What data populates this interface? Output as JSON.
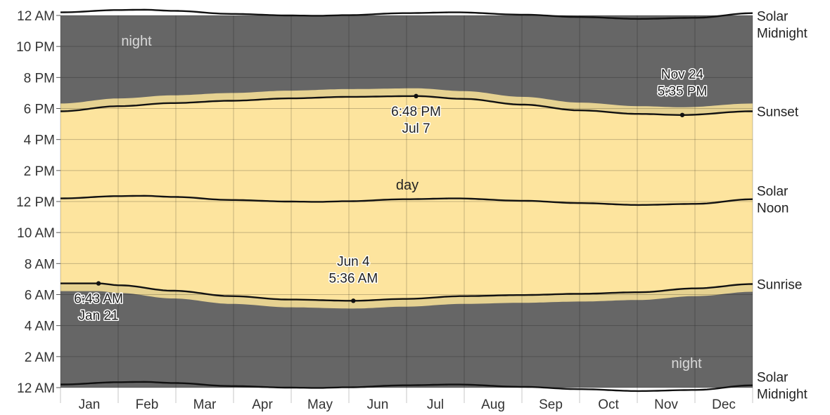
{
  "chart_data": {
    "type": "area",
    "y_axis": {
      "range_hours": [
        0,
        24
      ],
      "ticks": [
        {
          "hour": 0,
          "label": "12 AM"
        },
        {
          "hour": 2,
          "label": "2 AM"
        },
        {
          "hour": 4,
          "label": "4 AM"
        },
        {
          "hour": 6,
          "label": "6 AM"
        },
        {
          "hour": 8,
          "label": "8 AM"
        },
        {
          "hour": 10,
          "label": "10 AM"
        },
        {
          "hour": 12,
          "label": "12 PM"
        },
        {
          "hour": 14,
          "label": "2 PM"
        },
        {
          "hour": 16,
          "label": "4 PM"
        },
        {
          "hour": 18,
          "label": "6 PM"
        },
        {
          "hour": 20,
          "label": "8 PM"
        },
        {
          "hour": 22,
          "label": "10 PM"
        },
        {
          "hour": 24,
          "label": "12 AM"
        }
      ]
    },
    "x_axis": {
      "range_day_of_year": [
        1,
        365
      ],
      "months": [
        "Jan",
        "Feb",
        "Mar",
        "Apr",
        "May",
        "Jun",
        "Jul",
        "Aug",
        "Sep",
        "Oct",
        "Nov",
        "Dec"
      ]
    },
    "grid": true,
    "series": [
      {
        "name": "Sunrise",
        "values": [
          [
            1,
            6.72
          ],
          [
            21,
            6.72
          ],
          [
            32,
            6.6
          ],
          [
            60,
            6.25
          ],
          [
            91,
            5.9
          ],
          [
            121,
            5.68
          ],
          [
            155,
            5.6
          ],
          [
            182,
            5.72
          ],
          [
            213,
            5.9
          ],
          [
            244,
            5.97
          ],
          [
            274,
            6.05
          ],
          [
            305,
            6.15
          ],
          [
            335,
            6.4
          ],
          [
            365,
            6.68
          ]
        ]
      },
      {
        "name": "Solar Noon",
        "values": [
          [
            1,
            12.2
          ],
          [
            32,
            12.35
          ],
          [
            45,
            12.37
          ],
          [
            60,
            12.3
          ],
          [
            91,
            12.1
          ],
          [
            121,
            12.0
          ],
          [
            136,
            11.98
          ],
          [
            152,
            12.02
          ],
          [
            182,
            12.15
          ],
          [
            209,
            12.2
          ],
          [
            244,
            12.05
          ],
          [
            274,
            11.9
          ],
          [
            305,
            11.78
          ],
          [
            335,
            11.85
          ],
          [
            365,
            12.15
          ]
        ]
      },
      {
        "name": "Sunset",
        "values": [
          [
            1,
            5.82
          ],
          [
            32,
            6.15
          ],
          [
            60,
            6.35
          ],
          [
            91,
            6.5
          ],
          [
            121,
            6.65
          ],
          [
            152,
            6.75
          ],
          [
            188,
            6.8
          ],
          [
            213,
            6.62
          ],
          [
            244,
            6.25
          ],
          [
            274,
            5.88
          ],
          [
            305,
            5.65
          ],
          [
            328,
            5.58
          ],
          [
            365,
            5.82
          ]
        ]
      },
      {
        "name": "Solar Midnight",
        "values": [
          [
            1,
            0.2
          ],
          [
            32,
            0.35
          ],
          [
            45,
            0.37
          ],
          [
            60,
            0.3
          ],
          [
            91,
            0.1
          ],
          [
            121,
            0.0
          ],
          [
            136,
            -0.02
          ],
          [
            152,
            0.02
          ],
          [
            182,
            0.15
          ],
          [
            209,
            0.2
          ],
          [
            244,
            0.05
          ],
          [
            274,
            -0.1
          ],
          [
            305,
            -0.22
          ],
          [
            335,
            -0.15
          ],
          [
            365,
            0.15
          ]
        ]
      }
    ],
    "labels": {
      "solar_midnight": [
        "Solar",
        "Midnight"
      ],
      "sunset": "Sunset",
      "solar_noon": [
        "Solar",
        "Noon"
      ],
      "sunrise": "Sunrise",
      "night": "night",
      "day": "day"
    },
    "annotations": [
      {
        "day": 21,
        "hour": 6.72,
        "lines": [
          "6:43 AM",
          "Jan 21"
        ]
      },
      {
        "day": 155,
        "hour": 5.6,
        "lines": [
          "Jun 4",
          "5:36 AM"
        ]
      },
      {
        "day": 188,
        "hour": 6.8,
        "lines": [
          "6:48 PM",
          "Jul 7"
        ]
      },
      {
        "day": 328,
        "hour": 5.58,
        "lines": [
          "Nov 24",
          "5:35 PM"
        ]
      }
    ],
    "colors": {
      "night": "#666666",
      "day": "#fde49e",
      "twilight": [
        "#e6d291",
        "#c8b889",
        "#a89e82",
        "#8a857a"
      ],
      "curve": "#111111",
      "grid": "#000000"
    }
  }
}
